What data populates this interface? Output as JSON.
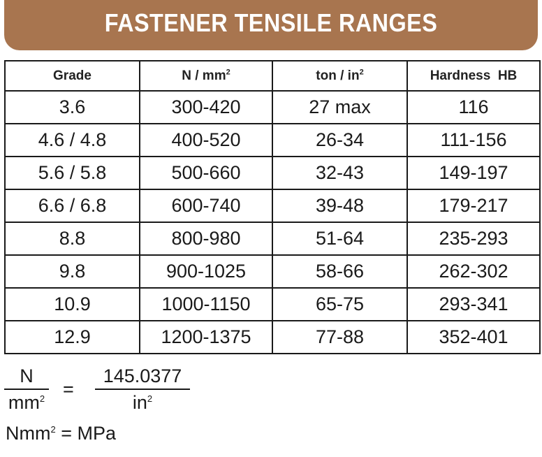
{
  "title": "FASTENER TENSILE RANGES",
  "table": {
    "headers": {
      "grade": "Grade",
      "n_mm": "N / mm",
      "n_mm_sup": "2",
      "ton_in": "ton / in",
      "ton_in_sup": "2",
      "hardness": "Hardness  HB"
    },
    "rows": [
      [
        "3.6",
        "300-420",
        "27 max",
        "116"
      ],
      [
        "4.6 / 4.8",
        "400-520",
        "26-34",
        "111-156"
      ],
      [
        "5.6 / 5.8",
        "500-660",
        "32-43",
        "149-197"
      ],
      [
        "6.6 / 6.8",
        "600-740",
        "39-48",
        "179-217"
      ],
      [
        "8.8",
        "800-980",
        "51-64",
        "235-293"
      ],
      [
        "9.8",
        "900-1025",
        "58-66",
        "262-302"
      ],
      [
        "10.9",
        "1000-1150",
        "65-75",
        "293-341"
      ],
      [
        "12.9",
        "1200-1375",
        "77-88",
        "352-401"
      ]
    ]
  },
  "formula": {
    "left_num": "N",
    "left_den": "mm",
    "left_den_sup": "2",
    "equals": "=",
    "right_num": "145.0377",
    "right_den": "in",
    "right_den_sup": "2"
  },
  "mpa_note": {
    "left": "Nmm",
    "sup": "2",
    "right": " = MPa"
  }
}
